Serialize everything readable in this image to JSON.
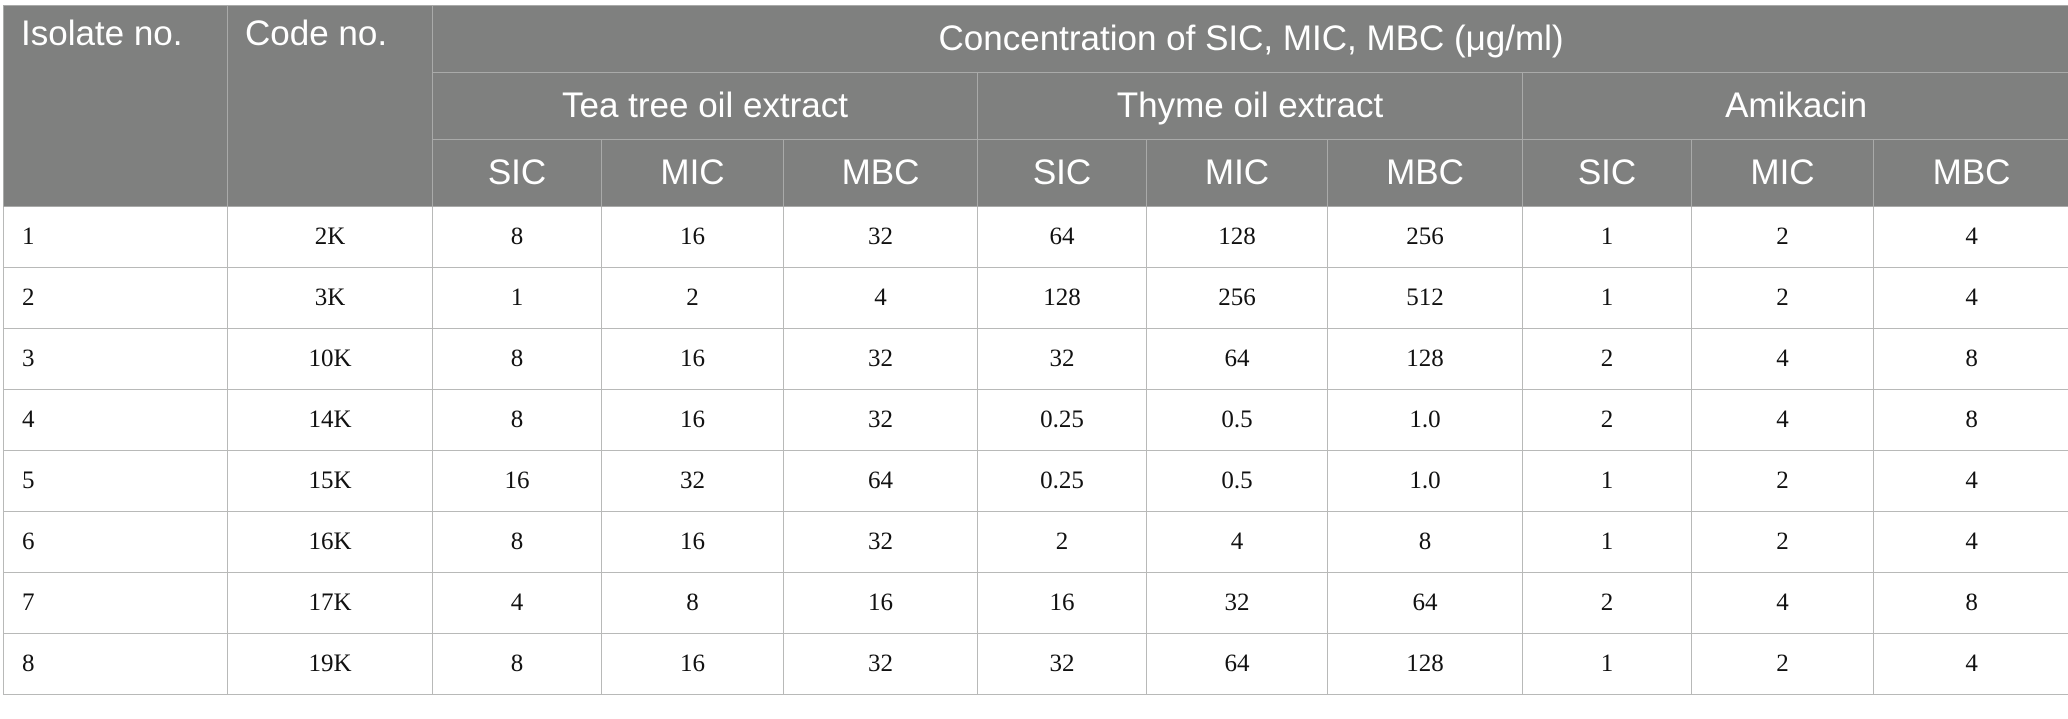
{
  "headers": {
    "isolate": "Isolate no.",
    "code": "Code no.",
    "concentration": "Concentration of SIC, MIC, MBC (μg/ml)",
    "groups": [
      "Tea tree oil extract",
      "Thyme oil extract",
      "Amikacin"
    ],
    "sub": [
      "SIC",
      "MIC",
      "MBC",
      "SIC",
      "MIC",
      "MBC",
      "SIC",
      "MIC",
      "MBC"
    ]
  },
  "rows": [
    [
      "1",
      "2K",
      "8",
      "16",
      "32",
      "64",
      "128",
      "256",
      "1",
      "2",
      "4"
    ],
    [
      "2",
      "3K",
      "1",
      "2",
      "4",
      "128",
      "256",
      "512",
      "1",
      "2",
      "4"
    ],
    [
      "3",
      "10K",
      "8",
      "16",
      "32",
      "32",
      "64",
      "128",
      "2",
      "4",
      "8"
    ],
    [
      "4",
      "14K",
      "8",
      "16",
      "32",
      "0.25",
      "0.5",
      "1.0",
      "2",
      "4",
      "8"
    ],
    [
      "5",
      "15K",
      "16",
      "32",
      "64",
      "0.25",
      "0.5",
      "1.0",
      "1",
      "2",
      "4"
    ],
    [
      "6",
      "16K",
      "8",
      "16",
      "32",
      "2",
      "4",
      "8",
      "1",
      "2",
      "4"
    ],
    [
      "7",
      "17K",
      "4",
      "8",
      "16",
      "16",
      "32",
      "64",
      "2",
      "4",
      "8"
    ],
    [
      "8",
      "19K",
      "8",
      "16",
      "32",
      "32",
      "64",
      "128",
      "1",
      "2",
      "4"
    ]
  ],
  "colors": {
    "header_bg": "#7f807f",
    "header_text": "#ffffff",
    "grid": "#b8b9b8"
  }
}
